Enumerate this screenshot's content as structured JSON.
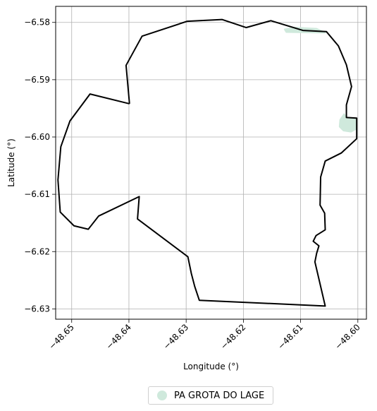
{
  "chart_data": {
    "type": "map",
    "xlabel": "Longitude (°)",
    "ylabel": "Latitude (°)",
    "xlim": [
      -48.6528,
      -48.5985
    ],
    "ylim": [
      -6.6318,
      -6.5772
    ],
    "xticks": [
      -48.65,
      -48.64,
      -48.63,
      -48.62,
      -48.61,
      -48.6
    ],
    "xtick_labels": [
      "−48.65",
      "−48.64",
      "−48.63",
      "−48.62",
      "−48.61",
      "−48.60"
    ],
    "yticks": [
      -6.58,
      -6.59,
      -6.6,
      -6.61,
      -6.62,
      -6.63
    ],
    "ytick_labels": [
      "−6.58",
      "−6.59",
      "−6.60",
      "−6.61",
      "−6.62",
      "−6.63"
    ],
    "xtick_rotation_deg": 45,
    "grid": true,
    "legend": {
      "placement": "bottom-center, below plot",
      "entries": [
        {
          "label": "PA GROTA DO LAGE",
          "color": "#cfe9dc"
        }
      ]
    },
    "boundary": {
      "color": "#000000",
      "points": [
        [
          -48.6399,
          -6.5942
        ],
        [
          -48.6405,
          -6.5875
        ],
        [
          -48.6377,
          -6.5824
        ],
        [
          -48.6298,
          -6.5798
        ],
        [
          -48.6237,
          -6.5795
        ],
        [
          -48.6195,
          -6.5809
        ],
        [
          -48.6152,
          -6.5797
        ],
        [
          -48.6096,
          -6.5814
        ],
        [
          -48.6055,
          -6.5816
        ],
        [
          -48.6034,
          -6.5841
        ],
        [
          -48.602,
          -6.5874
        ],
        [
          -48.6011,
          -6.5912
        ],
        [
          -48.602,
          -6.5944
        ],
        [
          -48.602,
          -6.5966
        ],
        [
          -48.6002,
          -6.5967
        ],
        [
          -48.6002,
          -6.6003
        ],
        [
          -48.6029,
          -6.6028
        ],
        [
          -48.6057,
          -6.6042
        ],
        [
          -48.6065,
          -6.607
        ],
        [
          -48.6066,
          -6.6119
        ],
        [
          -48.6058,
          -6.6133
        ],
        [
          -48.6057,
          -6.6162
        ],
        [
          -48.6073,
          -6.6172
        ],
        [
          -48.6078,
          -6.6182
        ],
        [
          -48.6068,
          -6.619
        ],
        [
          -48.6072,
          -6.6203
        ],
        [
          -48.6075,
          -6.6218
        ],
        [
          -48.6057,
          -6.6295
        ],
        [
          -48.6277,
          -6.6285
        ],
        [
          -48.6285,
          -6.6261
        ],
        [
          -48.6291,
          -6.6238
        ],
        [
          -48.6297,
          -6.6209
        ],
        [
          -48.6385,
          -6.6143
        ],
        [
          -48.6382,
          -6.6104
        ],
        [
          -48.6453,
          -6.6138
        ],
        [
          -48.6471,
          -6.6161
        ],
        [
          -48.6496,
          -6.6155
        ],
        [
          -48.652,
          -6.6131
        ],
        [
          -48.6524,
          -6.6075
        ],
        [
          -48.6519,
          -6.6017
        ],
        [
          -48.6503,
          -6.5972
        ],
        [
          -48.6468,
          -6.5925
        ],
        [
          -48.6399,
          -6.5942
        ]
      ]
    },
    "settlement_area": {
      "name": "PA GROTA DO LAGE",
      "color": "#cfe9dc",
      "parts": [
        [
          [
            -48.6128,
            -6.5812
          ],
          [
            -48.6125,
            -6.5817
          ],
          [
            -48.6057,
            -6.5818
          ],
          [
            -48.6072,
            -6.5811
          ],
          [
            -48.611,
            -6.5809
          ],
          [
            -48.6128,
            -6.5812
          ]
        ],
        [
          [
            -48.6024,
            -6.596
          ],
          [
            -48.6031,
            -6.597
          ],
          [
            -48.6032,
            -6.5982
          ],
          [
            -48.6025,
            -6.5989
          ],
          [
            -48.6012,
            -6.5991
          ],
          [
            -48.6003,
            -6.5986
          ],
          [
            -48.6003,
            -6.5968
          ],
          [
            -48.602,
            -6.5966
          ],
          [
            -48.6024,
            -6.596
          ]
        ]
      ]
    }
  }
}
